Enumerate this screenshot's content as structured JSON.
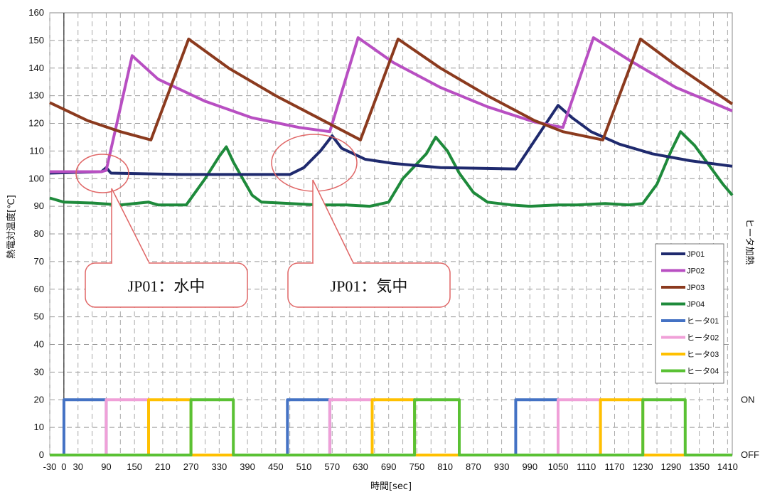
{
  "chart_data": {
    "type": "line",
    "xlabel": "時間[sec]",
    "ylabel": "熱電対温度[℃]",
    "y2label": "ヒータ加熱",
    "xlim": [
      -30,
      1420
    ],
    "ylim": [
      0,
      160
    ],
    "x_ticks": [
      -30,
      0,
      30,
      90,
      150,
      210,
      270,
      330,
      390,
      450,
      510,
      570,
      630,
      690,
      750,
      810,
      870,
      930,
      990,
      1050,
      1110,
      1170,
      1230,
      1290,
      1350,
      1410
    ],
    "y_ticks": [
      0,
      10,
      20,
      30,
      40,
      50,
      60,
      70,
      80,
      90,
      100,
      110,
      120,
      130,
      140,
      150,
      160
    ],
    "y2_ticks": [
      {
        "y": 20,
        "label": "ON"
      },
      {
        "y": 0,
        "label": "OFF"
      }
    ],
    "grid": true,
    "legend_position": "right",
    "series": [
      {
        "name": "JP01",
        "color": "#1f2a6e",
        "points": [
          [
            -30,
            102
          ],
          [
            80,
            102.5
          ],
          [
            90,
            104
          ],
          [
            100,
            102
          ],
          [
            250,
            101.5
          ],
          [
            480,
            101.5
          ],
          [
            510,
            104
          ],
          [
            545,
            110
          ],
          [
            570,
            115.5
          ],
          [
            590,
            111
          ],
          [
            640,
            107
          ],
          [
            700,
            105.5
          ],
          [
            800,
            104
          ],
          [
            960,
            103.5
          ],
          [
            1050,
            126.5
          ],
          [
            1080,
            122
          ],
          [
            1120,
            117
          ],
          [
            1180,
            112.5
          ],
          [
            1250,
            109
          ],
          [
            1330,
            106.5
          ],
          [
            1420,
            104.5
          ]
        ]
      },
      {
        "name": "JP02",
        "color": "#b84fc2",
        "points": [
          [
            -30,
            102.5
          ],
          [
            80,
            102.5
          ],
          [
            90,
            103
          ],
          [
            145,
            144.5
          ],
          [
            200,
            136
          ],
          [
            300,
            128
          ],
          [
            400,
            122
          ],
          [
            500,
            118.5
          ],
          [
            565,
            117
          ],
          [
            625,
            151
          ],
          [
            700,
            142
          ],
          [
            800,
            133
          ],
          [
            900,
            126
          ],
          [
            1000,
            120.5
          ],
          [
            1060,
            118.5
          ],
          [
            1125,
            151
          ],
          [
            1200,
            143
          ],
          [
            1300,
            133
          ],
          [
            1420,
            124.5
          ]
        ]
      },
      {
        "name": "JP03",
        "color": "#8b3a1e",
        "points": [
          [
            -30,
            127.5
          ],
          [
            50,
            121
          ],
          [
            120,
            117
          ],
          [
            185,
            114
          ],
          [
            265,
            150.5
          ],
          [
            350,
            140
          ],
          [
            450,
            130
          ],
          [
            540,
            122
          ],
          [
            630,
            114
          ],
          [
            710,
            150.5
          ],
          [
            800,
            140
          ],
          [
            900,
            130
          ],
          [
            1000,
            121
          ],
          [
            1060,
            117
          ],
          [
            1145,
            114
          ],
          [
            1225,
            150.5
          ],
          [
            1300,
            141
          ],
          [
            1420,
            127
          ]
        ]
      },
      {
        "name": "JP04",
        "color": "#1e8a3b",
        "points": [
          [
            -30,
            93
          ],
          [
            0,
            91.5
          ],
          [
            60,
            91.2
          ],
          [
            120,
            90.5
          ],
          [
            180,
            91.5
          ],
          [
            200,
            90.5
          ],
          [
            260,
            90.5
          ],
          [
            300,
            100
          ],
          [
            330,
            108
          ],
          [
            345,
            111.5
          ],
          [
            360,
            106
          ],
          [
            380,
            100
          ],
          [
            400,
            94
          ],
          [
            420,
            91.5
          ],
          [
            480,
            91
          ],
          [
            540,
            90.5
          ],
          [
            600,
            90.5
          ],
          [
            650,
            90
          ],
          [
            690,
            91.5
          ],
          [
            720,
            100
          ],
          [
            770,
            109
          ],
          [
            790,
            115
          ],
          [
            815,
            110
          ],
          [
            840,
            102
          ],
          [
            870,
            95
          ],
          [
            900,
            91.5
          ],
          [
            950,
            90.5
          ],
          [
            990,
            90
          ],
          [
            1050,
            90.5
          ],
          [
            1090,
            90.5
          ],
          [
            1150,
            91
          ],
          [
            1200,
            90.5
          ],
          [
            1230,
            91
          ],
          [
            1260,
            98
          ],
          [
            1290,
            110
          ],
          [
            1310,
            117
          ],
          [
            1340,
            112
          ],
          [
            1370,
            105
          ],
          [
            1400,
            98
          ],
          [
            1420,
            94
          ]
        ]
      },
      {
        "name": "ヒータ01",
        "color": "#4472c4",
        "points": [
          [
            -30,
            0
          ],
          [
            0,
            0
          ],
          [
            0,
            20
          ],
          [
            90,
            20
          ],
          [
            90,
            0
          ],
          [
            475,
            0
          ],
          [
            475,
            20
          ],
          [
            565,
            20
          ],
          [
            565,
            0
          ],
          [
            960,
            0
          ],
          [
            960,
            20
          ],
          [
            1050,
            20
          ],
          [
            1050,
            0
          ],
          [
            1420,
            0
          ]
        ]
      },
      {
        "name": "ヒータ02",
        "color": "#f0a0d8",
        "points": [
          [
            -30,
            0
          ],
          [
            90,
            0
          ],
          [
            90,
            20
          ],
          [
            180,
            20
          ],
          [
            180,
            0
          ],
          [
            565,
            0
          ],
          [
            565,
            20
          ],
          [
            655,
            20
          ],
          [
            655,
            0
          ],
          [
            1050,
            0
          ],
          [
            1050,
            20
          ],
          [
            1140,
            20
          ],
          [
            1140,
            0
          ],
          [
            1420,
            0
          ]
        ]
      },
      {
        "name": "ヒータ03",
        "color": "#ffc000",
        "points": [
          [
            -30,
            0
          ],
          [
            180,
            0
          ],
          [
            180,
            20
          ],
          [
            270,
            20
          ],
          [
            270,
            0
          ],
          [
            655,
            0
          ],
          [
            655,
            20
          ],
          [
            745,
            20
          ],
          [
            745,
            0
          ],
          [
            1140,
            0
          ],
          [
            1140,
            20
          ],
          [
            1230,
            20
          ],
          [
            1230,
            0
          ],
          [
            1420,
            0
          ]
        ]
      },
      {
        "name": "ヒータ04",
        "color": "#5ac134",
        "points": [
          [
            -30,
            0
          ],
          [
            270,
            0
          ],
          [
            270,
            20
          ],
          [
            360,
            20
          ],
          [
            360,
            0
          ],
          [
            745,
            0
          ],
          [
            745,
            20
          ],
          [
            840,
            20
          ],
          [
            840,
            0
          ],
          [
            1230,
            0
          ],
          [
            1230,
            20
          ],
          [
            1320,
            20
          ],
          [
            1320,
            0
          ],
          [
            1420,
            0
          ]
        ]
      }
    ],
    "annotations": [
      {
        "text": "JP01：水中",
        "target": [
          90,
          104
        ]
      },
      {
        "text": "JP01：気中",
        "target": [
          550,
          110
        ]
      }
    ]
  }
}
